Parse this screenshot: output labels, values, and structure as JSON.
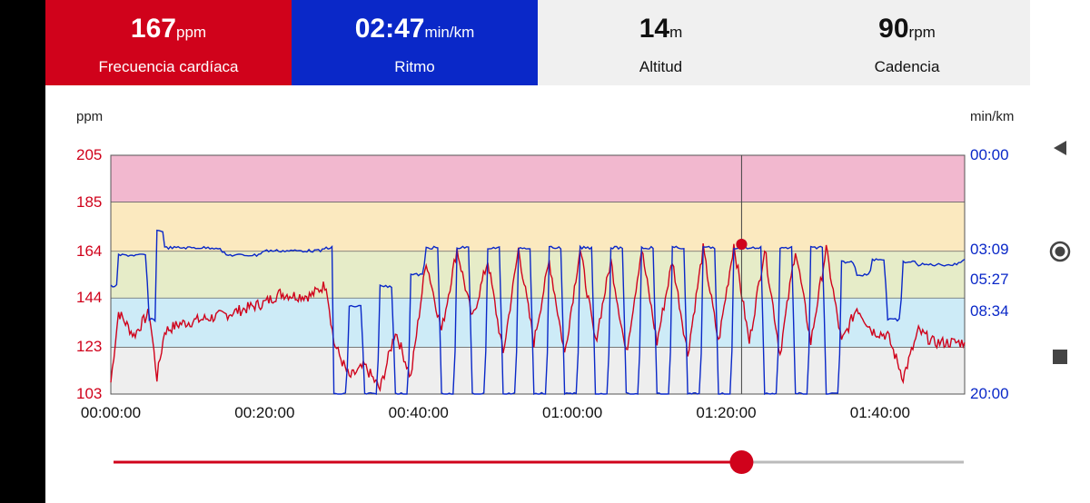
{
  "stats": {
    "heart_rate": {
      "value": "167",
      "unit": "ppm",
      "label": "Frecuencia cardíaca"
    },
    "pace": {
      "value": "02:47",
      "unit": "min/km",
      "label": "Ritmo"
    },
    "altitude": {
      "value": "14",
      "unit": "m",
      "label": "Altitud"
    },
    "cadence": {
      "value": "90",
      "unit": "rpm",
      "label": "Cadencia"
    }
  },
  "colors": {
    "hr_red": "#d0021b",
    "pace_blue": "#0a28c8",
    "zone5": "#f2b8cf",
    "zone4": "#fbe9bf",
    "zone3": "#e6ecc8",
    "zone2": "#cdebf7",
    "zone1": "#eeeeee"
  },
  "chart_data": {
    "type": "line",
    "left_axis_unit": "ppm",
    "right_axis_unit": "min/km",
    "left_ticks": [
      "205",
      "185",
      "164",
      "144",
      "123",
      "103"
    ],
    "right_ticks": [
      "00:00",
      "03:09",
      "05:27",
      "08:34",
      "20:00"
    ],
    "x_ticks": [
      "00:00:00",
      "00:20:00",
      "00:40:00",
      "01:00:00",
      "01:20:00",
      "01:40:00"
    ],
    "ylim_hr": [
      103,
      205
    ],
    "hr_zones": [
      185,
      164,
      144,
      123
    ],
    "cursor_time": "01:22:00",
    "cursor_hr": 167,
    "cursor_pace": "02:47",
    "series": [
      {
        "name": "Frecuencia cardíaca",
        "x": [
          "00:00:00",
          "00:01:00",
          "00:03:00",
          "00:05:00",
          "00:06:00",
          "00:07:00",
          "00:09:00",
          "00:12:00",
          "00:15:00",
          "00:18:00",
          "00:20:00",
          "00:22:00",
          "00:24:00",
          "00:26:00",
          "00:28:00",
          "00:29:00",
          "00:31:00",
          "00:33:00",
          "00:35:00",
          "00:37:00",
          "00:39:00",
          "00:41:00",
          "00:43:00",
          "00:45:00",
          "00:47:00",
          "00:49:00",
          "00:51:00",
          "00:53:00",
          "00:55:00",
          "00:57:00",
          "00:59:00",
          "01:01:00",
          "01:03:00",
          "01:05:00",
          "01:07:00",
          "01:09:00",
          "01:11:00",
          "01:13:00",
          "01:15:00",
          "01:17:00",
          "01:19:00",
          "01:21:00",
          "01:23:00",
          "01:25:00",
          "01:27:00",
          "01:29:00",
          "01:31:00",
          "01:33:00",
          "01:35:00",
          "01:37:00",
          "01:39:00",
          "01:41:00",
          "01:43:00",
          "01:45:00",
          "01:47:00",
          "01:51:00"
        ],
        "values": [
          108,
          138,
          128,
          138,
          110,
          130,
          133,
          135,
          137,
          140,
          142,
          146,
          145,
          145,
          150,
          125,
          110,
          115,
          105,
          130,
          110,
          160,
          130,
          165,
          135,
          160,
          120,
          165,
          125,
          160,
          120,
          165,
          125,
          160,
          120,
          165,
          125,
          160,
          120,
          165,
          125,
          167,
          125,
          165,
          120,
          165,
          125,
          165,
          125,
          140,
          130,
          128,
          110,
          130,
          125,
          125
        ]
      },
      {
        "name": "Ritmo",
        "x": [
          "00:00:00",
          "00:01:00",
          "00:03:00",
          "00:05:00",
          "00:06:00",
          "00:07:00",
          "00:10:00",
          "00:15:00",
          "00:20:00",
          "00:25:00",
          "00:28:00",
          "00:29:00",
          "00:31:00",
          "00:33:00",
          "00:35:00",
          "00:37:00",
          "00:39:00",
          "00:41:00",
          "00:43:00",
          "00:45:00",
          "00:47:00",
          "00:49:00",
          "00:51:00",
          "00:53:00",
          "00:55:00",
          "00:57:00",
          "00:59:00",
          "01:01:00",
          "01:03:00",
          "01:05:00",
          "01:07:00",
          "01:09:00",
          "01:11:00",
          "01:13:00",
          "01:15:00",
          "01:17:00",
          "01:19:00",
          "01:21:00",
          "01:23:00",
          "01:25:00",
          "01:27:00",
          "01:29:00",
          "01:31:00",
          "01:33:00",
          "01:35:00",
          "01:37:00",
          "01:39:00",
          "01:41:00",
          "01:43:00",
          "01:45:00",
          "01:51:00"
        ],
        "values_min_per_km": [
          6.0,
          3.5,
          3.5,
          9.5,
          2.0,
          3.0,
          3.0,
          3.5,
          3.2,
          3.2,
          3.0,
          20,
          8,
          20,
          6,
          20,
          5,
          3,
          20,
          3,
          20,
          3,
          20,
          3,
          20,
          3,
          20,
          3,
          20,
          3,
          20,
          3,
          20,
          3,
          20,
          3,
          20,
          3,
          3,
          20,
          3,
          20,
          3,
          20,
          4,
          5,
          3.8,
          9.5,
          4.0,
          4.2,
          3.8
        ]
      }
    ]
  }
}
